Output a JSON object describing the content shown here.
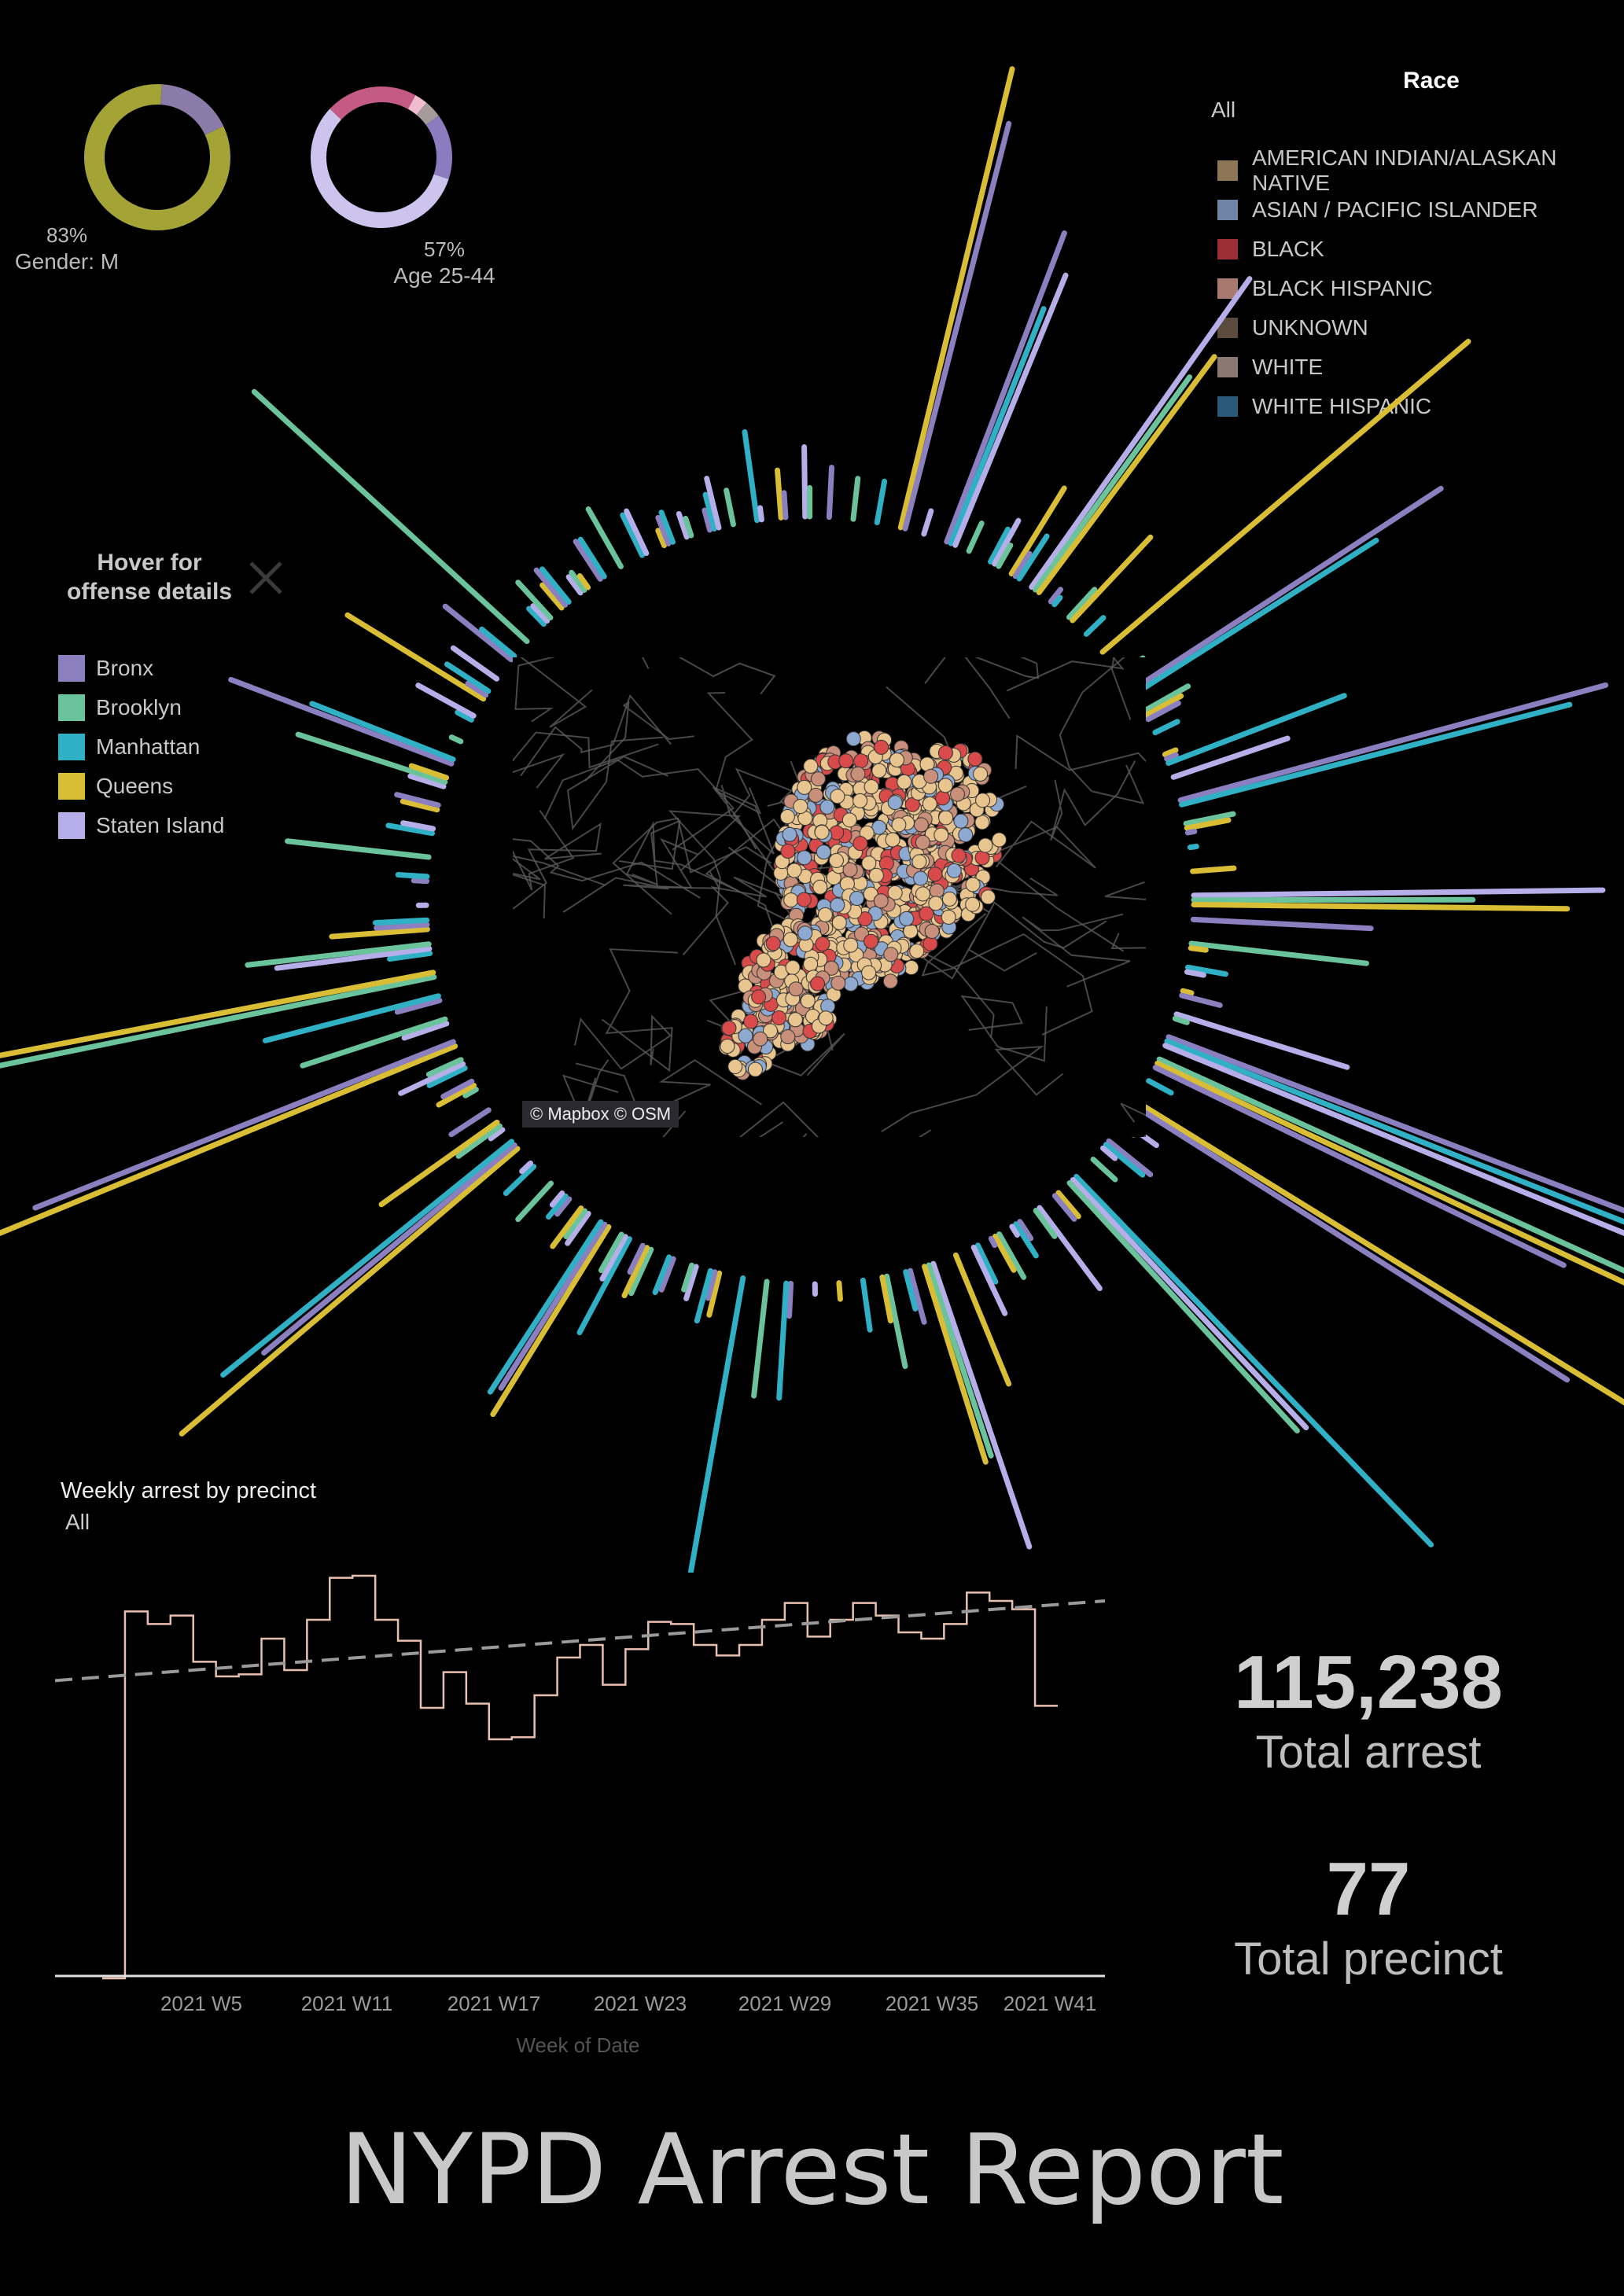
{
  "donuts": [
    {
      "name": "gender",
      "percent_text": "83%",
      "label": "Gender: M",
      "share": 0.83,
      "segments": [
        {
          "value": 0.83,
          "color": "#a3a336"
        },
        {
          "value": 0.17,
          "color": "#8b7ba8"
        }
      ]
    },
    {
      "name": "age",
      "percent_text": "57%",
      "label": "Age 25-44",
      "share": 0.57,
      "segments": [
        {
          "value": 0.57,
          "color": "#cdc4ee"
        },
        {
          "value": 0.21,
          "color": "#c45b84"
        },
        {
          "value": 0.03,
          "color": "#f0bcd0"
        },
        {
          "value": 0.04,
          "color": "#a69a9a"
        },
        {
          "value": 0.15,
          "color": "#8a7cbf"
        }
      ]
    }
  ],
  "race_legend": {
    "title": "Race",
    "filter": "All",
    "items": [
      {
        "label": "AMERICAN INDIAN/ALASKAN NATIVE",
        "color": "#8c7656"
      },
      {
        "label": "ASIAN / PACIFIC ISLANDER",
        "color": "#6e83a6"
      },
      {
        "label": "BLACK",
        "color": "#9b2f35"
      },
      {
        "label": "BLACK HISPANIC",
        "color": "#a8796e"
      },
      {
        "label": "UNKNOWN",
        "color": "#5b4a3e"
      },
      {
        "label": "WHITE",
        "color": "#8a7872"
      },
      {
        "label": "WHITE HISPANIC",
        "color": "#2b5a78"
      }
    ]
  },
  "hover": {
    "title_line1": "Hover for",
    "title_line2": "offense details",
    "close_icon": "close-icon"
  },
  "borough_legend": [
    {
      "label": "Bronx",
      "color": "#8c7fc0"
    },
    {
      "label": "Brooklyn",
      "color": "#6bc39c"
    },
    {
      "label": "Manhattan",
      "color": "#2fb0c4"
    },
    {
      "label": "Queens",
      "color": "#d9be35"
    },
    {
      "label": "Staten Island",
      "color": "#b6aee8"
    }
  ],
  "map": {
    "attribution": "© Mapbox © OSM"
  },
  "weekly": {
    "title": "Weekly arrest by precinct",
    "filter": "All",
    "xlabel": "Week of Date"
  },
  "chart_data": {
    "type": "line",
    "title": "Weekly arrest by precinct",
    "xlabel": "Week of Date",
    "ylabel": "",
    "x_tick_labels": [
      "2021 W5",
      "2021 W11",
      "2021 W17",
      "2021 W23",
      "2021 W29",
      "2021 W35",
      "2021 W41"
    ],
    "x": [
      1,
      2,
      3,
      4,
      5,
      6,
      7,
      8,
      9,
      10,
      11,
      12,
      13,
      14,
      15,
      16,
      17,
      18,
      19,
      20,
      21,
      22,
      23,
      24,
      25,
      26,
      27,
      28,
      29,
      30,
      31,
      32,
      33,
      34,
      35,
      36,
      37,
      38,
      39,
      40,
      41,
      42
    ],
    "series": [
      {
        "values": [
          1090,
          2840,
          2780,
          2820,
          2600,
          2530,
          2540,
          2710,
          2560,
          2800,
          3000,
          3010,
          2800,
          2700,
          2380,
          2550,
          2400,
          2230,
          2240,
          2440,
          2620,
          2680,
          2490,
          2660,
          2790,
          2780,
          2680,
          2630,
          2680,
          2800,
          2880,
          2720,
          2800,
          2880,
          2820,
          2740,
          2710,
          2780,
          2930,
          2890,
          2850,
          2390
        ]
      }
    ],
    "trend_line": {
      "start": 2510,
      "end": 2890
    },
    "series_color": "#e8c0b0"
  },
  "kpis": [
    {
      "value": "115,238",
      "label": "Total arrest"
    },
    {
      "value": "77",
      "label": "Total precinct"
    }
  ],
  "report_title": "NYPD Arrest Report"
}
